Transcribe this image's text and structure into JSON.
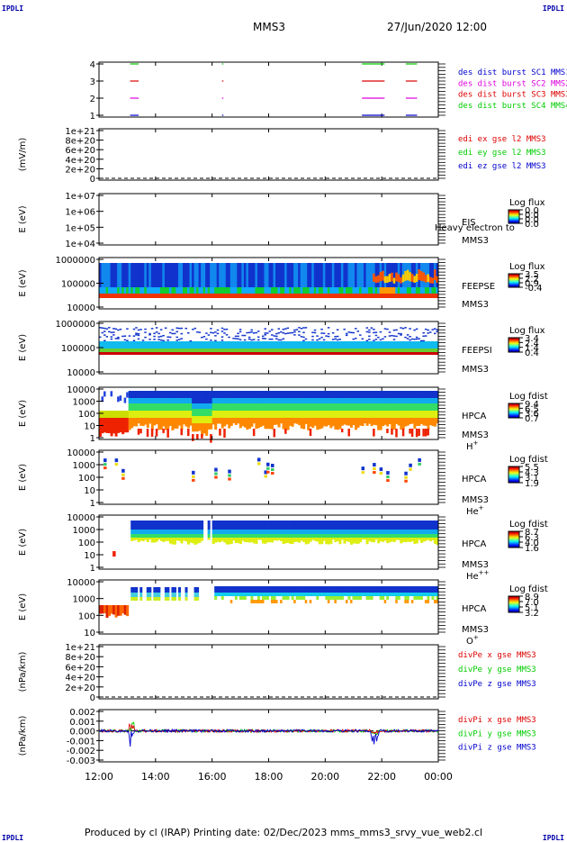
{
  "header": {
    "corner_tl": "IPDLI",
    "corner_tr": "IPDLI",
    "corner_bl": "IPDLI",
    "corner_br": "IPDLI",
    "spacecraft": "MMS3",
    "datetime": "27/Jun/2020 12:00"
  },
  "footer": {
    "text": "Produced by cl (IRAP)    Printing date: 02/Dec/2023    mms_mms3_srvy_vue_web2.cl"
  },
  "colors": {
    "blue": "#0000cc",
    "magenta": "#dd00dd",
    "red": "#dd0000",
    "green": "#00cc00",
    "bg": "#ffffff"
  },
  "chart_data": {
    "type": "multi-panel",
    "x_ticks": [
      "12:00",
      "14:00",
      "16:00",
      "18:00",
      "20:00",
      "22:00",
      "00:00"
    ],
    "x_range_hours": [
      12,
      24
    ],
    "panels": [
      {
        "id": "burst",
        "type": "timeline",
        "yticks": [
          "4",
          "3",
          "2",
          "1"
        ],
        "legend": [
          {
            "text": "des dist burst SC1 MMS1",
            "color": "#0000cc"
          },
          {
            "text": "des dist burst SC2 MMS2",
            "color": "#dd00dd"
          },
          {
            "text": "des dist burst SC3 MMS3",
            "color": "#dd0000"
          },
          {
            "text": "des dist burst SC4 MMS4",
            "color": "#00cc00"
          }
        ],
        "segments": [
          [
            13.1,
            13.4
          ],
          [
            16.35,
            16.4
          ],
          [
            21.3,
            22.1
          ],
          [
            22.85,
            23.25
          ]
        ]
      },
      {
        "id": "edi",
        "type": "line",
        "ylabel": "(mV/m)",
        "yticks": [
          "1e+21",
          "8e+20",
          "6e+20",
          "4e+20",
          "2e+20",
          "0"
        ],
        "legend": [
          {
            "text": "edi ex gse l2 MMS3",
            "color": "#dd0000"
          },
          {
            "text": "edi ey gse l2 MMS3",
            "color": "#00cc00"
          },
          {
            "text": "edi ez gse l2 MMS3",
            "color": "#0000cc"
          }
        ]
      },
      {
        "id": "eis",
        "type": "spectrogram",
        "ylabel": "E (eV)",
        "yticks": [
          "1e+07",
          "1e+06",
          "1e+05",
          "1e+04"
        ],
        "instrument": "EIS",
        "overlay_text": "Heavy electron to",
        "spacecraft": "MMS3",
        "cb_title": "Log flux",
        "cb_ticks": [
          "0.0",
          "0.0",
          "0.0",
          "0.0"
        ]
      },
      {
        "id": "feepse",
        "type": "spectrogram",
        "ylabel": "E (eV)",
        "yticks": [
          "1000000",
          "100000",
          "10000"
        ],
        "instrument": "FEEPSE",
        "spacecraft": "MMS3",
        "cb_title": "Log flux",
        "cb_ticks": [
          "3.5",
          "2.2",
          "0.9",
          "-0.4"
        ]
      },
      {
        "id": "feepsi",
        "type": "spectrogram",
        "ylabel": "E (eV)",
        "yticks": [
          "1000000",
          "100000",
          "10000"
        ],
        "instrument": "FEEPSI",
        "spacecraft": "MMS3",
        "cb_title": "Log flux",
        "cb_ticks": [
          "3.4",
          "2.4",
          "1.4",
          "0.4"
        ]
      },
      {
        "id": "hpca_h",
        "type": "spectrogram",
        "ylabel": "E (eV)",
        "yticks": [
          "10000",
          "1000",
          "100",
          "10",
          "1"
        ],
        "instrument": "HPCA",
        "spacecraft": "MMS3",
        "species": "H",
        "charge": "+",
        "cb_title": "Log fdist",
        "cb_ticks": [
          "9.4",
          "6.5",
          "3.6",
          "0.7"
        ]
      },
      {
        "id": "hpca_he1",
        "type": "spectrogram",
        "ylabel": "E (eV)",
        "yticks": [
          "10000",
          "1000",
          "100",
          "10",
          "1"
        ],
        "instrument": "HPCA",
        "spacecraft": "MMS3",
        "species": "He",
        "charge": "+",
        "cb_title": "Log fdist",
        "cb_ticks": [
          "5.5",
          "4.3",
          "3.1",
          "1.9"
        ]
      },
      {
        "id": "hpca_he2",
        "type": "spectrogram",
        "ylabel": "E (eV)",
        "yticks": [
          "10000",
          "1000",
          "100",
          "10",
          "1"
        ],
        "instrument": "HPCA",
        "spacecraft": "MMS3",
        "species": "He",
        "charge": "++",
        "cb_title": "Log fdist",
        "cb_ticks": [
          "8.7",
          "6.3",
          "4.0",
          "1.6"
        ]
      },
      {
        "id": "hpca_o",
        "type": "spectrogram",
        "ylabel": "E (eV)",
        "yticks": [
          "10000",
          "1000",
          "100",
          "10"
        ],
        "instrument": "HPCA",
        "spacecraft": "MMS3",
        "species": "O",
        "charge": "+",
        "cb_title": "Log fdist",
        "cb_ticks": [
          "8.9",
          "7.0",
          "5.1",
          "3.2"
        ]
      },
      {
        "id": "divpe",
        "type": "line",
        "ylabel": "(nPa/km)",
        "yticks": [
          "1e+21",
          "8e+20",
          "6e+20",
          "4e+20",
          "2e+20",
          "0"
        ],
        "legend": [
          {
            "text": "divPe x gse MMS3",
            "color": "#dd0000"
          },
          {
            "text": "divPe y gse MMS3",
            "color": "#00cc00"
          },
          {
            "text": "divPe z gse MMS3",
            "color": "#0000cc"
          }
        ]
      },
      {
        "id": "divpi",
        "type": "line",
        "ylabel": "(nPa/km)",
        "yticks": [
          "0.002",
          "0.001",
          "0.000",
          "-0.001",
          "-0.002",
          "-0.003"
        ],
        "legend": [
          {
            "text": "divPi x gse MMS3",
            "color": "#dd0000"
          },
          {
            "text": "divPi y gse MMS3",
            "color": "#00cc00"
          },
          {
            "text": "divPi z gse MMS3",
            "color": "#0000cc"
          }
        ]
      }
    ]
  }
}
